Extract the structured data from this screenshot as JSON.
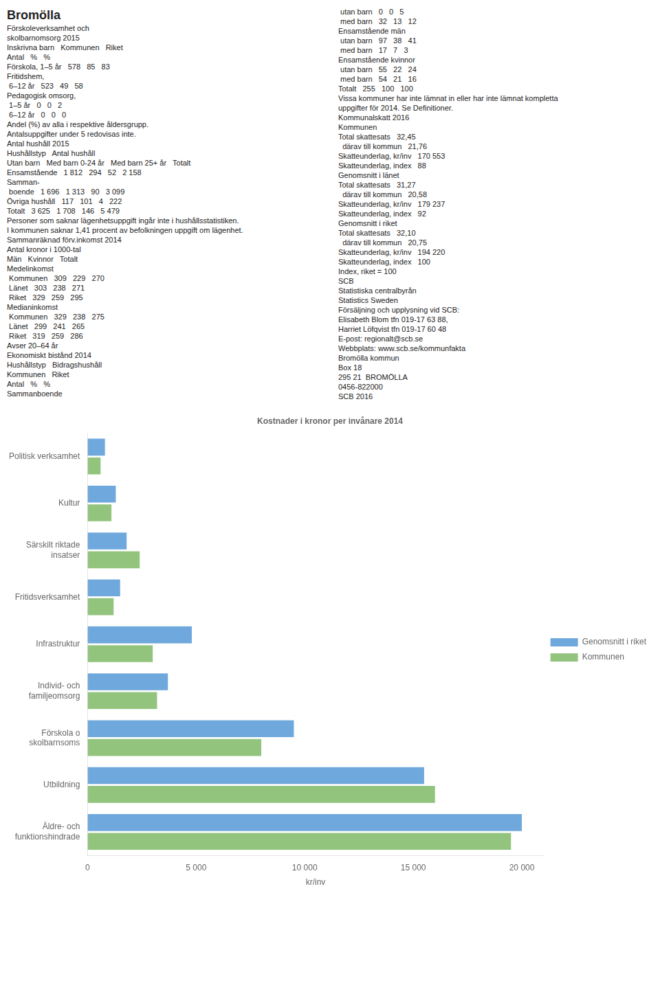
{
  "chart_data": {
    "type": "bar",
    "orientation": "horizontal",
    "title": "Kostnader i kronor per invånare 2014",
    "xlabel": "kr/inv",
    "categories": [
      "Äldre- och\nfunktionshindrade",
      "Utbildning",
      "Förskola o\nskolbarnsoms",
      "Individ- och\nfamiljeomsorg",
      "Infrastruktur",
      "Fritidsverksamhet",
      "Särskilt riktade\ninsatser",
      "Kultur",
      "Politisk verksamhet"
    ],
    "series": [
      {
        "name": "Genomsnitt i riket",
        "color": "#6fa8dc",
        "values": [
          20000,
          15500,
          9500,
          3700,
          4800,
          1500,
          1800,
          1300,
          800
        ]
      },
      {
        "name": "Kommunen",
        "color": "#93c47d",
        "values": [
          19500,
          16000,
          8000,
          3200,
          3000,
          1200,
          2400,
          1100,
          600
        ]
      }
    ],
    "xlim": [
      0,
      21000
    ],
    "xticks": [
      0,
      {
        "value": 5000,
        "label": "5 000"
      },
      {
        "value": 10000,
        "label": "10 000"
      },
      {
        "value": 15000,
        "label": "15 000"
      },
      {
        "value": 20000,
        "label": "20 000"
      }
    ],
    "grid": false,
    "legend": "right",
    "annotations": [
      "Bromölla",
      "Förskoleverksamhet och",
      "skolbarnomsorg 2015",
      "Inskrivna barn   Kommunen   Riket",
      "Antal   %   %",
      "Förskola, 1–5 år   578   85   83",
      "Fritidshem,",
      " 6–12 år   523   49   58",
      "Pedagogisk omsorg,",
      " 1–5 år   0   0   2",
      " 6–12 år   0   0   0",
      "Andel (%) av alla i respektive åldersgrupp.",
      "Antalsuppgifter under 5 redovisas inte.",
      "Antal hushåll 2015",
      "Hushållstyp   Antal hushåll",
      "Utan barn   Med barn 0-24 år   Med barn 25+ år   Totalt",
      "Ensamstående   1 812   294   52   2 158",
      "Samman-",
      " boende   1 696   1 313   90   3 099",
      "Övriga hushåll   117   101   4   222",
      "Totalt   3 625   1 708   146   5 479",
      "Personer som saknar lägenhetsuppgift ingår inte i hushållsstatistiken.",
      "I kommunen saknar 1,41 procent av befolkningen uppgift om lägenhet.",
      "Sammanräknad förv.inkomst 2014",
      "Antal kronor i 1000-tal",
      "Män   Kvinnor   Totalt",
      "Medelinkomst",
      " Kommunen   309   229   270",
      " Länet   303   238   271",
      " Riket   329   259   295",
      "Medianinkomst",
      " Kommunen   329   238   275",
      " Länet   299   241   265",
      " Riket   319   259   286",
      "Avser 20–64 år",
      "Ekonomiskt bistånd 2014",
      "Hushållstyp   Bidragshushåll",
      "Kommunen   Riket",
      "Antal   %   %",
      "Sammanboende",
      " utan barn   0   0   5",
      " med barn   32   13   12",
      "Ensamstående män",
      " utan barn   97   38   41",
      " med barn   17   7   3",
      "Ensamstående kvinnor",
      " utan barn   55   22   24",
      " med barn   54   21   16",
      "Totalt   255   100   100",
      "Vissa kommuner har inte lämnat in eller har inte lämnat kompletta",
      "uppgifter för 2014. Se Definitioner.",
      "Kommunalskatt 2016",
      "Kommunen",
      "Total skattesats   32,45",
      "  därav till kommun   21,76",
      "Skatteunderlag, kr/inv   170 553",
      "Skatteunderlag, index   88",
      "Genomsnitt i länet",
      "Total skattesats   31,27",
      "  därav till kommun   20,58",
      "Skatteunderlag, kr/inv   179 237",
      "Skatteunderlag, index   92",
      "Genomsnitt i riket",
      "Total skattesats   32,10",
      "  därav till kommun   20,75",
      "Skatteunderlag, kr/inv   194 220",
      "Skatteunderlag, index   100",
      "Index, riket = 100",
      "SCB",
      "Statistiska centralbyrån",
      "Statistics Sweden",
      "Försäljning och upplysning vid SCB:",
      "Elisabeth Blom tfn 019-17 63 88,",
      "Harriet Löfqvist tfn 019-17 60 48",
      "E-post: regionalt@scb.se",
      "Webbplats: www.scb.se/kommunfakta",
      "Bromölla kommun",
      "Box 18",
      "295 21  BROMÖLLA",
      "0456-822000",
      "SCB 2016"
    ]
  }
}
